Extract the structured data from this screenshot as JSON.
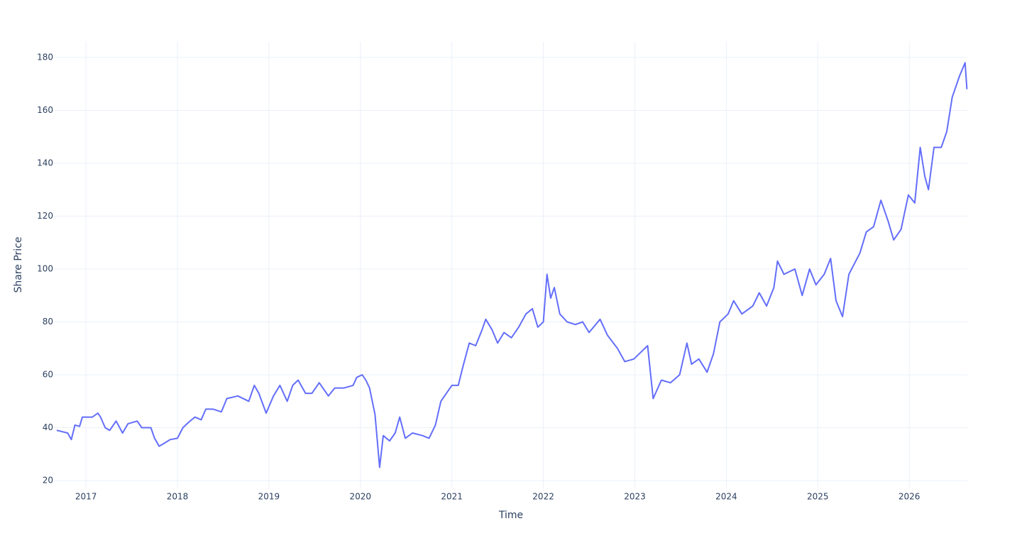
{
  "chart_data": {
    "type": "line",
    "x_label": "Time",
    "y_label": "Share Price",
    "xlim": [
      2016.65,
      2026.635
    ],
    "ylim": [
      17,
      186
    ],
    "xticks": [
      2017,
      2018,
      2019,
      2020,
      2021,
      2022,
      2023,
      2024,
      2025,
      2026
    ],
    "yticks": [
      20,
      40,
      60,
      80,
      100,
      120,
      140,
      160,
      180
    ],
    "grid": true,
    "series": [
      {
        "name": "Share Price",
        "color": "#636efa",
        "x": [
          2016.68,
          2016.8,
          2016.84,
          2016.88,
          2016.93,
          2016.96,
          2017.07,
          2017.13,
          2017.16,
          2017.21,
          2017.26,
          2017.33,
          2017.4,
          2017.46,
          2017.56,
          2017.61,
          2017.71,
          2017.75,
          2017.8,
          2017.85,
          2017.92,
          2018.0,
          2018.06,
          2018.12,
          2018.19,
          2018.26,
          2018.31,
          2018.39,
          2018.48,
          2018.54,
          2018.66,
          2018.78,
          2018.84,
          2018.89,
          2018.97,
          2019.05,
          2019.12,
          2019.2,
          2019.26,
          2019.32,
          2019.4,
          2019.47,
          2019.55,
          2019.65,
          2019.72,
          2019.82,
          2019.92,
          2019.96,
          2020.02,
          2020.06,
          2020.1,
          2020.16,
          2020.21,
          2020.25,
          2020.32,
          2020.38,
          2020.43,
          2020.49,
          2020.57,
          2020.68,
          2020.75,
          2020.82,
          2020.88,
          2020.94,
          2021.0,
          2021.07,
          2021.12,
          2021.19,
          2021.26,
          2021.33,
          2021.37,
          2021.44,
          2021.5,
          2021.57,
          2021.65,
          2021.73,
          2021.81,
          2021.88,
          2021.94,
          2022.0,
          2022.04,
          2022.08,
          2022.12,
          2022.18,
          2022.26,
          2022.35,
          2022.43,
          2022.5,
          2022.62,
          2022.7,
          2022.81,
          2022.89,
          2022.99,
          2023.05,
          2023.14,
          2023.2,
          2023.29,
          2023.39,
          2023.49,
          2023.57,
          2023.62,
          2023.7,
          2023.79,
          2023.86,
          2023.93,
          2024.02,
          2024.08,
          2024.17,
          2024.29,
          2024.36,
          2024.44,
          2024.52,
          2024.56,
          2024.63,
          2024.75,
          2024.83,
          2024.91,
          2024.98,
          2025.07,
          2025.14,
          2025.2,
          2025.27,
          2025.34,
          2025.46,
          2025.53,
          2025.61,
          2025.69,
          2025.77,
          2025.83,
          2025.91,
          2025.99,
          2026.06,
          2026.12,
          2026.17,
          2026.21,
          2026.27,
          2026.35,
          2026.41,
          2026.47,
          2026.55,
          2026.61,
          2026.63
        ],
        "values": [
          39,
          38,
          35.5,
          41,
          40.5,
          44,
          44,
          45.5,
          44,
          40,
          39,
          42.5,
          38,
          41.5,
          42.5,
          40,
          40,
          36,
          33,
          34,
          35.5,
          36,
          40,
          42,
          44,
          43,
          47,
          47,
          46,
          51,
          52,
          50,
          56,
          53,
          45.5,
          52,
          56,
          50,
          56,
          58,
          53,
          53,
          57,
          52,
          55,
          55,
          56,
          59,
          60,
          58,
          55,
          45,
          25,
          37,
          35,
          38,
          44,
          36,
          38,
          37,
          36,
          41,
          50,
          53,
          56,
          56,
          63,
          72,
          71,
          77,
          81,
          77,
          72,
          76,
          74,
          78,
          83,
          85,
          78,
          80,
          98,
          89,
          93,
          83,
          80,
          79,
          80,
          76,
          81,
          75,
          70,
          65,
          66,
          68,
          71,
          51,
          58,
          57,
          60,
          72,
          64,
          66,
          61,
          68,
          80,
          83,
          88,
          83,
          86,
          91,
          86,
          93,
          103,
          98,
          100,
          90,
          100,
          94,
          98,
          104,
          88,
          82,
          98,
          106,
          114,
          116,
          126,
          118,
          111,
          115,
          128,
          125,
          146,
          135,
          130,
          146,
          146,
          152,
          165,
          173,
          178,
          168
        ]
      }
    ]
  }
}
